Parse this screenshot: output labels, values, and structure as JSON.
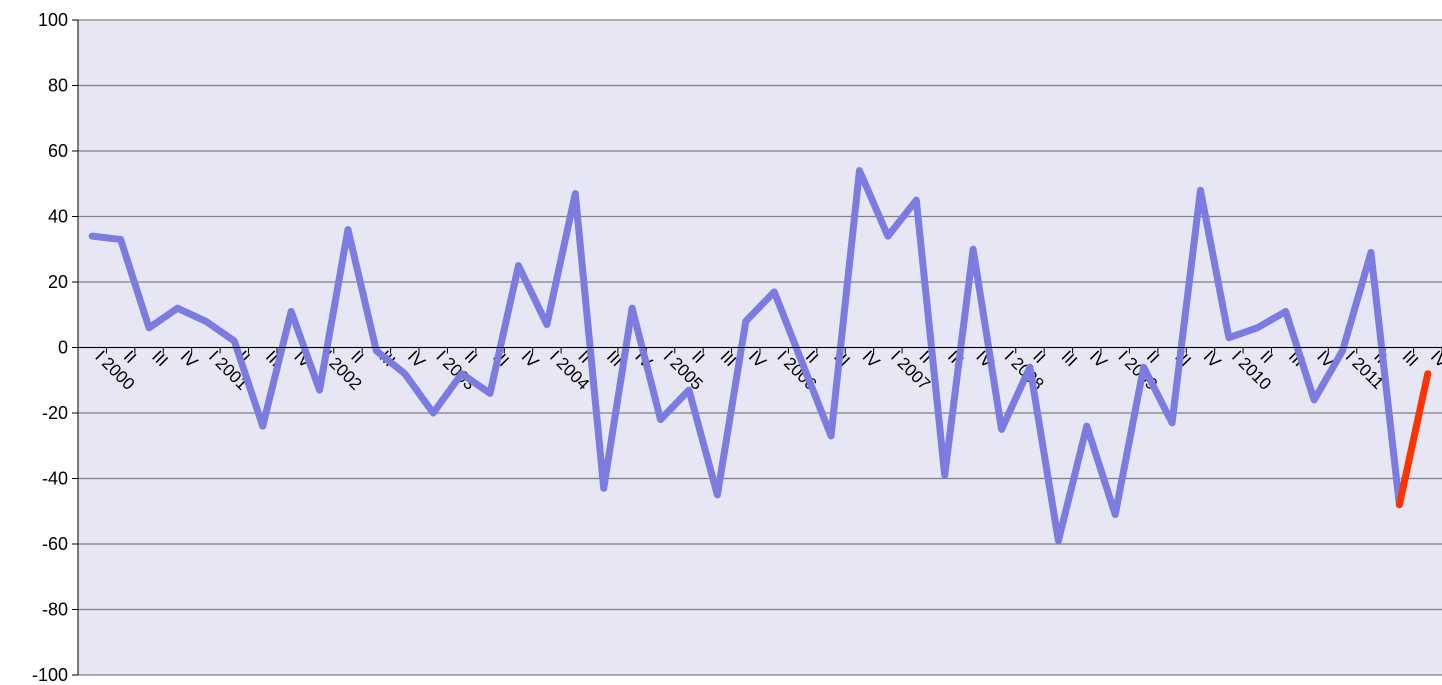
{
  "chart_data": {
    "type": "line",
    "title": "",
    "xlabel": "",
    "ylabel": "",
    "ylim": [
      -100,
      100
    ],
    "yticks": [
      100,
      80,
      60,
      40,
      20,
      0,
      -20,
      -40,
      -60,
      -80,
      -100
    ],
    "grid": true,
    "legend": "none",
    "categories": [
      "I 2000",
      "II",
      "III",
      "IV",
      "I 2001",
      "II",
      "III",
      "IV",
      "I 2002",
      "II",
      "III",
      "IV",
      "I 2003",
      "II",
      "III",
      "IV",
      "I 2004",
      "II",
      "III",
      "IV",
      "I 2005",
      "II",
      "III",
      "IV",
      "I 2006",
      "II",
      "III",
      "IV",
      "I 2007",
      "II",
      "III",
      "IV",
      "I 2008",
      "II",
      "III",
      "IV",
      "I 2009",
      "II",
      "III",
      "IV",
      "I 2010",
      "II",
      "III",
      "IV",
      "I 2011",
      "II",
      "III",
      "IV"
    ],
    "series": [
      {
        "color": "#7b7be0",
        "values": [
          34,
          33,
          6,
          12,
          8,
          2,
          -24,
          11,
          -13,
          36,
          -1,
          -8,
          -20,
          -8,
          -14,
          25,
          7,
          47,
          -43,
          12,
          -22,
          -13,
          -45,
          8,
          17,
          -5,
          -27,
          54,
          34,
          45,
          -39,
          30,
          -25,
          -6,
          -59,
          -24,
          -51,
          -6,
          -23,
          48,
          3,
          6,
          11,
          -16,
          -1,
          29,
          -48,
          null
        ]
      },
      {
        "color": "#ff3300",
        "values": [
          null,
          null,
          null,
          null,
          null,
          null,
          null,
          null,
          null,
          null,
          null,
          null,
          null,
          null,
          null,
          null,
          null,
          null,
          null,
          null,
          null,
          null,
          null,
          null,
          null,
          null,
          null,
          null,
          null,
          null,
          null,
          null,
          null,
          null,
          null,
          null,
          null,
          null,
          null,
          null,
          null,
          null,
          null,
          null,
          null,
          null,
          -48,
          -8
        ]
      }
    ],
    "colors": {
      "plot_background": "#e6e6f5",
      "gridline": "#808080",
      "axis": "#000000"
    }
  }
}
